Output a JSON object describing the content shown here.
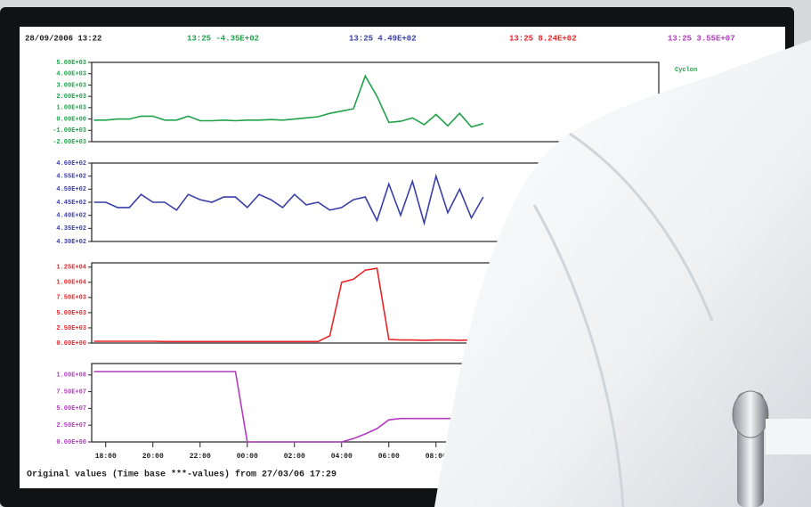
{
  "screen": {
    "header": [
      "28/09/2006 13:22",
      "13:25 -4.35E+02",
      "13:25 4.49E+02",
      "13:25 8.24E+02",
      "13:25 3.55E+07"
    ],
    "legend_label": "Cyclon",
    "footer": "Original values (Time base ***-values) from 27/03/06 17:29"
  },
  "chart_data": [
    {
      "type": "line",
      "color": "#1fa24a",
      "x": [
        "17:30",
        "18:00",
        "18:30",
        "19:00",
        "19:30",
        "20:00",
        "20:30",
        "21:00",
        "21:30",
        "22:00",
        "22:30",
        "23:00",
        "23:30",
        "00:00",
        "00:30",
        "01:00",
        "01:30",
        "02:00",
        "02:30",
        "03:00",
        "03:30",
        "04:00",
        "04:30",
        "05:00",
        "05:30",
        "06:00",
        "06:30",
        "07:00",
        "07:30",
        "08:00",
        "08:30",
        "09:00",
        "09:30",
        "10:00"
      ],
      "values": [
        -100,
        -100,
        0,
        0,
        250,
        250,
        -100,
        -100,
        250,
        -150,
        -150,
        -100,
        -150,
        -100,
        -100,
        -50,
        -100,
        0,
        100,
        200,
        500,
        700,
        900,
        3800,
        2000,
        -300,
        -200,
        100,
        -500,
        400,
        -600,
        500,
        -700,
        -400
      ],
      "ylim": [
        -2000,
        5000
      ],
      "yticks": [
        {
          "value": 5000,
          "label": "5.00E+03"
        },
        {
          "value": 4000,
          "label": "4.00E+03"
        },
        {
          "value": 3000,
          "label": "3.00E+03"
        },
        {
          "value": 2000,
          "label": "2.00E+03"
        },
        {
          "value": 1000,
          "label": "1.00E+03"
        },
        {
          "value": 0,
          "label": "0.00E+00"
        },
        {
          "value": -1000,
          "label": "-1.00E+03"
        },
        {
          "value": -2000,
          "label": "-2.00E+03"
        }
      ]
    },
    {
      "type": "line",
      "color": "#3a3fa6",
      "x": [
        "17:30",
        "18:00",
        "18:30",
        "19:00",
        "19:30",
        "20:00",
        "20:30",
        "21:00",
        "21:30",
        "22:00",
        "22:30",
        "23:00",
        "23:30",
        "00:00",
        "00:30",
        "01:00",
        "01:30",
        "02:00",
        "02:30",
        "03:00",
        "03:30",
        "04:00",
        "04:30",
        "05:00",
        "05:30",
        "06:00",
        "06:30",
        "07:00",
        "07:30",
        "08:00",
        "08:30",
        "09:00",
        "09:30",
        "10:00"
      ],
      "values": [
        445,
        445,
        443,
        443,
        448,
        445,
        445,
        442,
        448,
        446,
        445,
        447,
        447,
        443,
        448,
        446,
        443,
        448,
        444,
        445,
        442,
        443,
        446,
        447,
        438,
        452,
        440,
        453,
        437,
        455,
        441,
        450,
        439,
        447
      ],
      "ylim": [
        430,
        460
      ],
      "yticks": [
        {
          "value": 460,
          "label": "4.60E+02"
        },
        {
          "value": 455,
          "label": "4.55E+02"
        },
        {
          "value": 450,
          "label": "4.50E+02"
        },
        {
          "value": 445,
          "label": "4.45E+02"
        },
        {
          "value": 440,
          "label": "4.40E+02"
        },
        {
          "value": 435,
          "label": "4.35E+02"
        },
        {
          "value": 430,
          "label": "4.30E+02"
        }
      ]
    },
    {
      "type": "line",
      "color": "#e8262a",
      "x": [
        "17:30",
        "18:00",
        "18:30",
        "19:00",
        "19:30",
        "20:00",
        "20:30",
        "21:00",
        "21:30",
        "22:00",
        "22:30",
        "23:00",
        "23:30",
        "00:00",
        "00:30",
        "01:00",
        "01:30",
        "02:00",
        "02:30",
        "03:00",
        "03:30",
        "04:00",
        "04:30",
        "05:00",
        "05:30",
        "06:00",
        "06:30",
        "07:00",
        "07:30",
        "08:00",
        "08:30",
        "09:00",
        "09:30",
        "10:00"
      ],
      "values": [
        300,
        300,
        300,
        300,
        300,
        300,
        250,
        250,
        250,
        250,
        250,
        250,
        250,
        250,
        250,
        250,
        250,
        250,
        250,
        250,
        1200,
        10000,
        10500,
        12000,
        12300,
        600,
        500,
        500,
        450,
        500,
        500,
        450,
        500,
        500
      ],
      "ylim": [
        0,
        13200
      ],
      "yticks": [
        {
          "value": 12500,
          "label": "1.25E+04"
        },
        {
          "value": 10000,
          "label": "1.00E+04"
        },
        {
          "value": 7500,
          "label": "7.50E+03"
        },
        {
          "value": 5000,
          "label": "5.00E+03"
        },
        {
          "value": 2500,
          "label": "2.50E+03"
        },
        {
          "value": 0,
          "label": "0.00E+00"
        }
      ]
    },
    {
      "type": "line",
      "color": "#b13cbe",
      "x": [
        "17:30",
        "18:00",
        "18:30",
        "19:00",
        "19:30",
        "20:00",
        "20:30",
        "21:00",
        "21:30",
        "22:00",
        "22:30",
        "23:00",
        "23:30",
        "00:00",
        "00:30",
        "01:00",
        "01:30",
        "02:00",
        "02:30",
        "03:00",
        "03:30",
        "04:00",
        "04:30",
        "05:00",
        "05:30",
        "06:00",
        "06:30",
        "07:00",
        "07:30",
        "08:00",
        "08:30",
        "09:00",
        "09:30",
        "10:00"
      ],
      "values": [
        105000000,
        105000000,
        105000000,
        105000000,
        105000000,
        105000000,
        105000000,
        105000000,
        105000000,
        105000000,
        105000000,
        105000000,
        105000000,
        0,
        0,
        0,
        0,
        0,
        0,
        0,
        0,
        0,
        5000000,
        12000000,
        20000000,
        33000000,
        35000000,
        35000000,
        35000000,
        35000000,
        35000000,
        35000000,
        35000000,
        35000000
      ],
      "ylim": [
        0,
        117000000
      ],
      "yticks": [
        {
          "value": 100000000,
          "label": "1.00E+08"
        },
        {
          "value": 75000000,
          "label": "7.50E+07"
        },
        {
          "value": 50000000,
          "label": "5.00E+07"
        },
        {
          "value": 25000000,
          "label": "2.50E+07"
        },
        {
          "value": 0,
          "label": "0.00E+00"
        }
      ],
      "xticks": [
        "18:00",
        "20:00",
        "22:00",
        "00:00",
        "02:00",
        "04:00",
        "06:00",
        "08:00"
      ]
    }
  ]
}
